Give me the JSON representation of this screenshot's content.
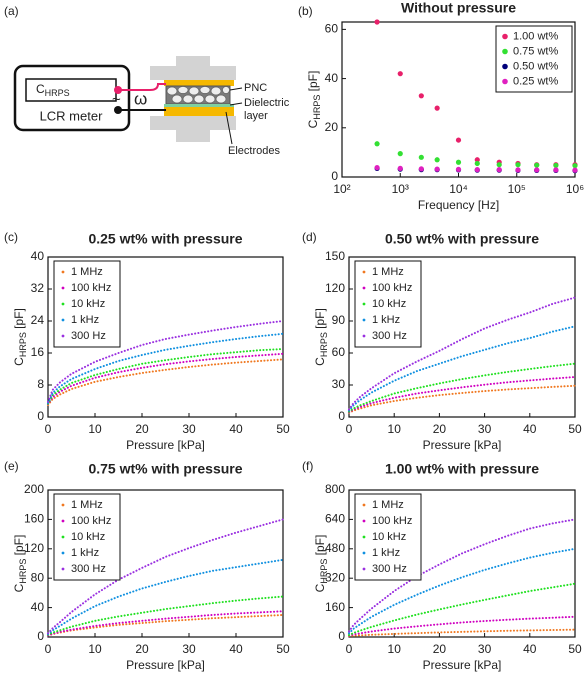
{
  "diagram": {
    "panel_label": "(a)",
    "meter_quantity": [
      "C",
      "HRPS"
    ],
    "meter_name": "LCR meter",
    "source_symbol": "~",
    "frequency_symbol": "ω",
    "pnc_label": "PNC",
    "dielectric_label": [
      "Dielectric",
      "layer"
    ],
    "electrodes_label": "Electrodes"
  },
  "chart_data": [
    {
      "type": "scatter",
      "panel_label": "(b)",
      "title": "Without pressure",
      "xlabel": "Frequency  [Hz]",
      "ylabel": [
        "C",
        "HRPS",
        " [pF]"
      ],
      "xscale": "log",
      "legend": "upper right",
      "x": [
        400,
        1000,
        2300,
        4300,
        10000,
        21000,
        50000,
        105000,
        220000,
        470000,
        1000000
      ],
      "xlim": [
        100,
        1000000
      ],
      "xticks": [
        {
          "value": 100,
          "label": "10²"
        },
        {
          "value": 1000,
          "label": "10³"
        },
        {
          "value": 10000,
          "label": "10⁴"
        },
        {
          "value": 100000,
          "label": "10⁵"
        },
        {
          "value": 1000000,
          "label": "10⁶"
        }
      ],
      "ylim": [
        0,
        63
      ],
      "yticks": [
        0,
        20,
        40,
        60
      ],
      "series": [
        {
          "name": "1.00 wt%",
          "color": "#e8206a",
          "values": [
            63,
            42,
            33,
            28,
            15,
            7,
            6,
            5.5,
            5,
            5,
            5
          ]
        },
        {
          "name": "0.75 wt%",
          "color": "#33e033",
          "values": [
            13.5,
            9.5,
            8,
            7,
            6,
            5.5,
            5,
            5,
            4.8,
            4.7,
            4.6
          ]
        },
        {
          "name": "0.50 wt%",
          "color": "#00007a",
          "values": [
            3.5,
            3.2,
            3,
            3,
            2.9,
            2.8,
            2.8,
            2.7,
            2.7,
            2.7,
            2.6
          ]
        },
        {
          "name": "0.25 wt%",
          "color": "#e020c0",
          "values": [
            3.8,
            3.5,
            3.3,
            3.2,
            3.1,
            3,
            3,
            2.9,
            2.9,
            2.9,
            2.8
          ]
        }
      ]
    },
    {
      "type": "line",
      "panel_label": "(c)",
      "title": "0.25 wt% with pressure",
      "xlabel": "Pressure [kPa]",
      "ylabel": [
        "C",
        "HRPS",
        " [pF]"
      ],
      "legend": "upper left",
      "x": [
        0,
        1,
        2.5,
        5,
        10,
        15,
        20,
        25,
        30,
        35,
        40,
        45,
        50
      ],
      "xlim": [
        0,
        50
      ],
      "xticks": [
        0,
        10,
        20,
        30,
        40,
        50
      ],
      "ylim": [
        0,
        40
      ],
      "yticks": [
        0,
        8,
        16,
        24,
        32,
        40
      ],
      "series": [
        {
          "name": "1 MHz",
          "color": "#f07820",
          "values": [
            3,
            4.5,
            5.6,
            7,
            8.8,
            10,
            11,
            11.8,
            12.5,
            13.1,
            13.6,
            14,
            14.4
          ]
        },
        {
          "name": "100 kHz",
          "color": "#d000c0",
          "values": [
            3.2,
            5,
            6.3,
            7.8,
            9.8,
            11.2,
            12.3,
            13.2,
            13.9,
            14.5,
            15,
            15.4,
            15.8
          ]
        },
        {
          "name": "10 kHz",
          "color": "#20e020",
          "values": [
            3.3,
            5.5,
            6.8,
            8.5,
            10.5,
            12,
            13.3,
            14.2,
            15,
            15.7,
            16.2,
            16.7,
            17
          ]
        },
        {
          "name": "1 kHz",
          "color": "#1090e0",
          "values": [
            3.5,
            6,
            7.6,
            9.5,
            12,
            14,
            15.5,
            16.8,
            17.8,
            18.7,
            19.5,
            20.2,
            20.8
          ]
        },
        {
          "name": "300 Hz",
          "color": "#9a30e0",
          "values": [
            3.8,
            6.8,
            8.6,
            10.8,
            13.8,
            16,
            18,
            19.5,
            20.6,
            21.6,
            22.5,
            23.3,
            24
          ]
        }
      ]
    },
    {
      "type": "line",
      "panel_label": "(d)",
      "title": "0.50 wt% with pressure",
      "xlabel": "Pressure [kPa]",
      "ylabel": [
        "C",
        "HRPS",
        " [pF]"
      ],
      "legend": "upper left",
      "x": [
        0,
        1,
        2.5,
        5,
        10,
        15,
        20,
        25,
        30,
        35,
        40,
        45,
        50
      ],
      "xlim": [
        0,
        50
      ],
      "xticks": [
        0,
        10,
        20,
        30,
        40,
        50
      ],
      "ylim": [
        0,
        150
      ],
      "yticks": [
        0,
        30,
        60,
        90,
        120,
        150
      ],
      "series": [
        {
          "name": "1 MHz",
          "color": "#f07820",
          "values": [
            4,
            6,
            8,
            11,
            15,
            18,
            20.5,
            22.5,
            24.3,
            25.8,
            27,
            28.2,
            29.3
          ]
        },
        {
          "name": "100 kHz",
          "color": "#d000c0",
          "values": [
            4.5,
            7,
            9.5,
            13,
            18,
            22,
            25,
            27.8,
            30.3,
            32.5,
            34.3,
            36,
            37.5
          ]
        },
        {
          "name": "10 kHz",
          "color": "#20e020",
          "values": [
            5,
            8,
            11,
            15,
            22,
            27,
            31.5,
            35.5,
            39,
            42.2,
            45,
            47.7,
            50
          ]
        },
        {
          "name": "1 kHz",
          "color": "#1090e0",
          "values": [
            6,
            11,
            16,
            23,
            34,
            43,
            50,
            57,
            63,
            69,
            74,
            80,
            85
          ]
        },
        {
          "name": "300 Hz",
          "color": "#9a30e0",
          "values": [
            7,
            13,
            19,
            27,
            41,
            52,
            62,
            73,
            83,
            91,
            98,
            106,
            112
          ]
        }
      ]
    },
    {
      "type": "line",
      "panel_label": "(e)",
      "title": "0.75 wt% with pressure",
      "xlabel": "Pressure [kPa]",
      "ylabel": [
        "C",
        "HRPS",
        " [pF]"
      ],
      "legend": "upper left",
      "x": [
        0,
        1,
        2.5,
        5,
        10,
        15,
        20,
        25,
        30,
        35,
        40,
        45,
        50
      ],
      "xlim": [
        0,
        50
      ],
      "xticks": [
        0,
        10,
        20,
        30,
        40,
        50
      ],
      "ylim": [
        0,
        200
      ],
      "yticks": [
        0,
        40,
        80,
        120,
        160,
        200
      ],
      "series": [
        {
          "name": "1 MHz",
          "color": "#f07820",
          "values": [
            2,
            4,
            6,
            9,
            13,
            16.5,
            19,
            21.5,
            23.5,
            25.5,
            27,
            28.5,
            30
          ]
        },
        {
          "name": "100 kHz",
          "color": "#d000c0",
          "values": [
            2,
            4.5,
            7,
            10,
            15,
            19,
            22,
            25,
            27.5,
            30,
            32,
            33.5,
            35
          ]
        },
        {
          "name": "10 kHz",
          "color": "#20e020",
          "values": [
            3,
            6,
            9,
            14,
            22,
            28,
            33,
            38,
            42,
            46,
            49.5,
            52.5,
            55
          ]
        },
        {
          "name": "1 kHz",
          "color": "#1090e0",
          "values": [
            4,
            9,
            15,
            25,
            42,
            55,
            66,
            75,
            83,
            90,
            95,
            100,
            105
          ]
        },
        {
          "name": "300 Hz",
          "color": "#9a30e0",
          "values": [
            5,
            12,
            20,
            34,
            58,
            78,
            94,
            109,
            121,
            132,
            142,
            151,
            160
          ]
        }
      ]
    },
    {
      "type": "line",
      "panel_label": "(f)",
      "title": "1.00 wt% with pressure",
      "xlabel": "Pressure [kPa]",
      "ylabel": [
        "C",
        "HRPS",
        " [pF]"
      ],
      "legend": "upper left",
      "x": [
        0,
        1,
        2.5,
        5,
        10,
        15,
        20,
        25,
        30,
        35,
        40,
        45,
        50
      ],
      "xlim": [
        0,
        50
      ],
      "xticks": [
        0,
        10,
        20,
        30,
        40,
        50
      ],
      "ylim": [
        0,
        800
      ],
      "yticks": [
        0,
        160,
        320,
        480,
        640,
        800
      ],
      "series": [
        {
          "name": "1 MHz",
          "color": "#f07820",
          "values": [
            5,
            7,
            9,
            12,
            17,
            21,
            25,
            28,
            31,
            34,
            36,
            38,
            40
          ]
        },
        {
          "name": "100 kHz",
          "color": "#d000c0",
          "values": [
            8,
            14,
            20,
            30,
            46,
            58,
            69,
            79,
            87,
            94,
            100,
            105,
            110
          ]
        },
        {
          "name": "10 kHz",
          "color": "#20e020",
          "values": [
            10,
            22,
            35,
            55,
            90,
            122,
            150,
            177,
            202,
            226,
            250,
            270,
            290
          ]
        },
        {
          "name": "1 kHz",
          "color": "#1090e0",
          "values": [
            20,
            45,
            70,
            110,
            175,
            230,
            280,
            325,
            365,
            400,
            432,
            458,
            480
          ]
        },
        {
          "name": "300 Hz",
          "color": "#9a30e0",
          "values": [
            30,
            65,
            100,
            155,
            250,
            330,
            395,
            455,
            505,
            550,
            590,
            618,
            640
          ]
        }
      ]
    }
  ]
}
